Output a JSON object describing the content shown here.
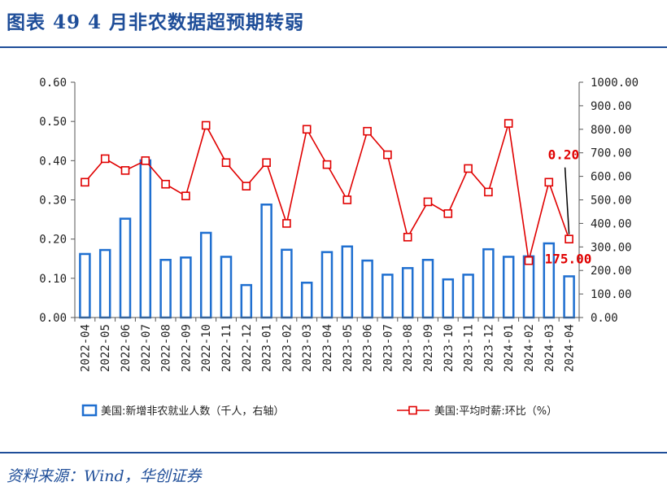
{
  "figure_title": "图表 49   4 月非农数据超预期转弱",
  "source": "资料来源：Wind，华创证券",
  "colors": {
    "brand": "#1f4e99",
    "bar": "#1f6fd0",
    "line": "#e00000"
  },
  "chart_data": {
    "type": "bar",
    "categories": [
      "2022-04",
      "2022-05",
      "2022-06",
      "2022-07",
      "2022-08",
      "2022-09",
      "2022-10",
      "2022-11",
      "2022-12",
      "2023-01",
      "2023-02",
      "2023-03",
      "2023-04",
      "2023-05",
      "2023-06",
      "2023-07",
      "2023-08",
      "2023-09",
      "2023-10",
      "2023-11",
      "2023-12",
      "2024-01",
      "2024-02",
      "2024-03",
      "2024-04"
    ],
    "series": [
      {
        "name": "美国:新增非农就业人数（千人，右轴）",
        "type": "bar",
        "axis": "right",
        "values": [
          270,
          287,
          420,
          668,
          245,
          255,
          360,
          258,
          138,
          480,
          288,
          148,
          278,
          302,
          242,
          182,
          210,
          245,
          162,
          182,
          290,
          258,
          260,
          315,
          175
        ]
      },
      {
        "name": "美国:平均时薪:环比（%）",
        "type": "line",
        "axis": "left",
        "values": [
          0.345,
          0.405,
          0.375,
          0.4,
          0.34,
          0.31,
          0.49,
          0.395,
          0.335,
          0.395,
          0.24,
          0.48,
          0.39,
          0.3,
          0.475,
          0.415,
          0.205,
          0.295,
          0.265,
          0.38,
          0.32,
          0.495,
          0.145,
          0.345,
          0.2
        ]
      }
    ],
    "yleft": {
      "lim": [
        0,
        0.6
      ],
      "ticks": [
        "0.00",
        "0.10",
        "0.20",
        "0.30",
        "0.40",
        "0.50",
        "0.60"
      ]
    },
    "yright": {
      "lim": [
        0,
        1000
      ],
      "ticks": [
        "0.00",
        "100.00",
        "200.00",
        "300.00",
        "400.00",
        "500.00",
        "600.00",
        "700.00",
        "800.00",
        "900.00",
        "1000.00"
      ]
    },
    "annotations": [
      {
        "text": "0.20",
        "color": "#e00000"
      },
      {
        "text": "175.00",
        "color": "#e00000"
      }
    ],
    "grid": false,
    "legend_position": "bottom"
  }
}
